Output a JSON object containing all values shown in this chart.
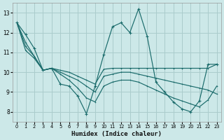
{
  "xlabel": "Humidex (Indice chaleur)",
  "bg_color": "#cce8e8",
  "grid_color": "#aacccc",
  "line_color": "#1a6b6b",
  "xlim": [
    -0.5,
    23.5
  ],
  "ylim": [
    7.5,
    13.5
  ],
  "xticks": [
    0,
    1,
    2,
    3,
    4,
    5,
    6,
    7,
    8,
    9,
    10,
    11,
    12,
    13,
    14,
    15,
    16,
    17,
    18,
    19,
    20,
    21,
    22,
    23
  ],
  "yticks": [
    8,
    9,
    10,
    11,
    12,
    13
  ],
  "line1_x": [
    0,
    1,
    2,
    3,
    4,
    5,
    6,
    7,
    8,
    9,
    10,
    11,
    12,
    13,
    14,
    15,
    16,
    17,
    18,
    19,
    20,
    21,
    22,
    23
  ],
  "line1_y": [
    12.5,
    11.9,
    11.2,
    10.1,
    10.2,
    9.4,
    9.3,
    8.8,
    7.9,
    9.3,
    10.9,
    12.3,
    12.5,
    12.0,
    13.2,
    11.8,
    9.5,
    9.0,
    8.5,
    8.15,
    8.0,
    8.55,
    10.4,
    10.4
  ],
  "line2_x": [
    0,
    1,
    2,
    3,
    4,
    5,
    6,
    7,
    8,
    9,
    10,
    11,
    12,
    13,
    14,
    15,
    16,
    17,
    18,
    19,
    20,
    21,
    22,
    23
  ],
  "line2_y": [
    12.5,
    11.5,
    10.8,
    10.1,
    10.2,
    10.1,
    10.0,
    9.8,
    9.6,
    9.4,
    10.15,
    10.2,
    10.2,
    10.2,
    10.2,
    10.2,
    10.2,
    10.2,
    10.2,
    10.2,
    10.2,
    10.2,
    10.2,
    10.4
  ],
  "line3_x": [
    0,
    1,
    2,
    3,
    4,
    5,
    6,
    7,
    8,
    9,
    10,
    11,
    12,
    13,
    14,
    15,
    16,
    17,
    18,
    19,
    20,
    21,
    22,
    23
  ],
  "line3_y": [
    12.5,
    11.3,
    10.8,
    10.1,
    10.2,
    10.0,
    9.8,
    9.6,
    9.3,
    9.0,
    9.8,
    9.9,
    10.0,
    10.0,
    9.9,
    9.8,
    9.7,
    9.6,
    9.5,
    9.4,
    9.3,
    9.2,
    9.1,
    8.9
  ],
  "line4_x": [
    0,
    1,
    2,
    3,
    4,
    5,
    6,
    7,
    8,
    9,
    10,
    11,
    12,
    13,
    14,
    15,
    16,
    17,
    18,
    19,
    20,
    21,
    22,
    23
  ],
  "line4_y": [
    12.5,
    11.1,
    10.7,
    10.1,
    10.2,
    9.9,
    9.6,
    9.2,
    8.7,
    8.5,
    9.3,
    9.5,
    9.6,
    9.6,
    9.5,
    9.3,
    9.1,
    8.9,
    8.7,
    8.55,
    8.4,
    8.25,
    8.6,
    9.3
  ]
}
